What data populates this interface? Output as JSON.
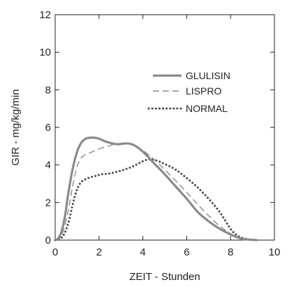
{
  "chart_data": {
    "type": "line",
    "xlabel": "ZEIT - Stunden",
    "ylabel": "GIR - mg/kg/min",
    "xlim": [
      0,
      10
    ],
    "ylim": [
      0,
      12
    ],
    "xticks": [
      0,
      2,
      4,
      6,
      8,
      10
    ],
    "yticks": [
      0,
      2,
      4,
      6,
      8,
      10,
      12
    ],
    "grid": false,
    "legend_position": "top-right",
    "series": [
      {
        "name": "GLULISIN",
        "style": "solid",
        "color": "#8a8a8a",
        "x": [
          0,
          0.15,
          0.3,
          0.45,
          0.6,
          0.8,
          1.0,
          1.2,
          1.4,
          1.6,
          1.8,
          2.0,
          2.3,
          2.6,
          2.9,
          3.2,
          3.5,
          3.8,
          4.1,
          4.5,
          5.0,
          5.5,
          6.0,
          6.5,
          7.0,
          7.5,
          8.0,
          8.3,
          8.6,
          8.9,
          9.2
        ],
        "y": [
          0,
          0.1,
          0.5,
          1.3,
          2.5,
          3.8,
          4.7,
          5.2,
          5.4,
          5.45,
          5.45,
          5.4,
          5.25,
          5.15,
          5.1,
          5.15,
          5.1,
          4.9,
          4.6,
          4.1,
          3.5,
          2.85,
          2.2,
          1.5,
          1.0,
          0.6,
          0.3,
          0.15,
          0.05,
          0.02,
          0
        ]
      },
      {
        "name": "LISPRO",
        "style": "dashed",
        "color": "#8a8a8a",
        "x": [
          0,
          0.2,
          0.4,
          0.6,
          0.8,
          1.0,
          1.2,
          1.5,
          1.8,
          2.1,
          2.4,
          2.7,
          3.0,
          3.3,
          3.6,
          3.9,
          4.2,
          4.5,
          5.0,
          5.5,
          6.0,
          6.5,
          7.0,
          7.5,
          8.0,
          8.3,
          8.6,
          9.0
        ],
        "y": [
          0,
          0.1,
          0.6,
          1.6,
          2.9,
          3.9,
          4.4,
          4.6,
          4.75,
          4.9,
          5.0,
          5.1,
          5.15,
          5.15,
          5.05,
          4.85,
          4.6,
          4.3,
          3.75,
          3.15,
          2.55,
          1.9,
          1.3,
          0.75,
          0.35,
          0.15,
          0.05,
          0
        ]
      },
      {
        "name": "NORMAL",
        "style": "dotted",
        "color": "#4d4d4d",
        "x": [
          0,
          0.2,
          0.4,
          0.6,
          0.8,
          1.0,
          1.2,
          1.5,
          1.8,
          2.1,
          2.5,
          3.0,
          3.5,
          4.0,
          4.3,
          4.6,
          5.0,
          5.5,
          6.0,
          6.5,
          7.0,
          7.5,
          8.0,
          8.3,
          8.6,
          8.9,
          9.2
        ],
        "y": [
          0,
          0.05,
          0.3,
          0.9,
          1.9,
          2.7,
          3.1,
          3.3,
          3.4,
          3.5,
          3.55,
          3.7,
          3.9,
          4.2,
          4.3,
          4.25,
          4.05,
          3.75,
          3.3,
          2.8,
          2.2,
          1.5,
          0.6,
          0.25,
          0.1,
          0.03,
          0
        ]
      }
    ]
  }
}
